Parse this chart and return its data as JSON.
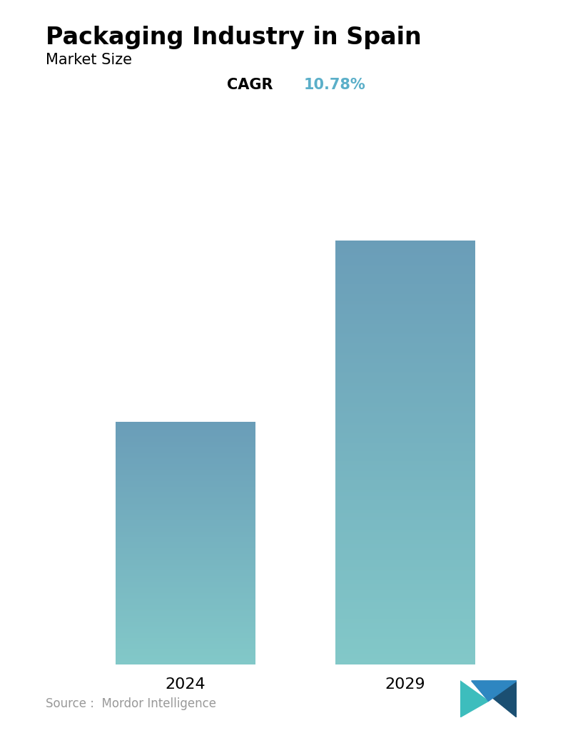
{
  "title": "Packaging Industry in Spain",
  "subtitle": "Market Size",
  "cagr_label": "CAGR",
  "cagr_value": "10.78%",
  "cagr_color": "#5BAFC9",
  "categories": [
    "2024",
    "2029"
  ],
  "values": [
    1.0,
    1.75
  ],
  "bar_top_color_left": "#6A9DB8",
  "bar_bottom_color_left": "#82C8C8",
  "bar_top_color_right": "#6A9DB8",
  "bar_bottom_color_right": "#82C8C8",
  "background_color": "#ffffff",
  "source_text": "Source :  Mordor Intelligence",
  "title_fontsize": 24,
  "subtitle_fontsize": 15,
  "tick_fontsize": 16,
  "cagr_fontsize": 15,
  "source_fontsize": 12
}
